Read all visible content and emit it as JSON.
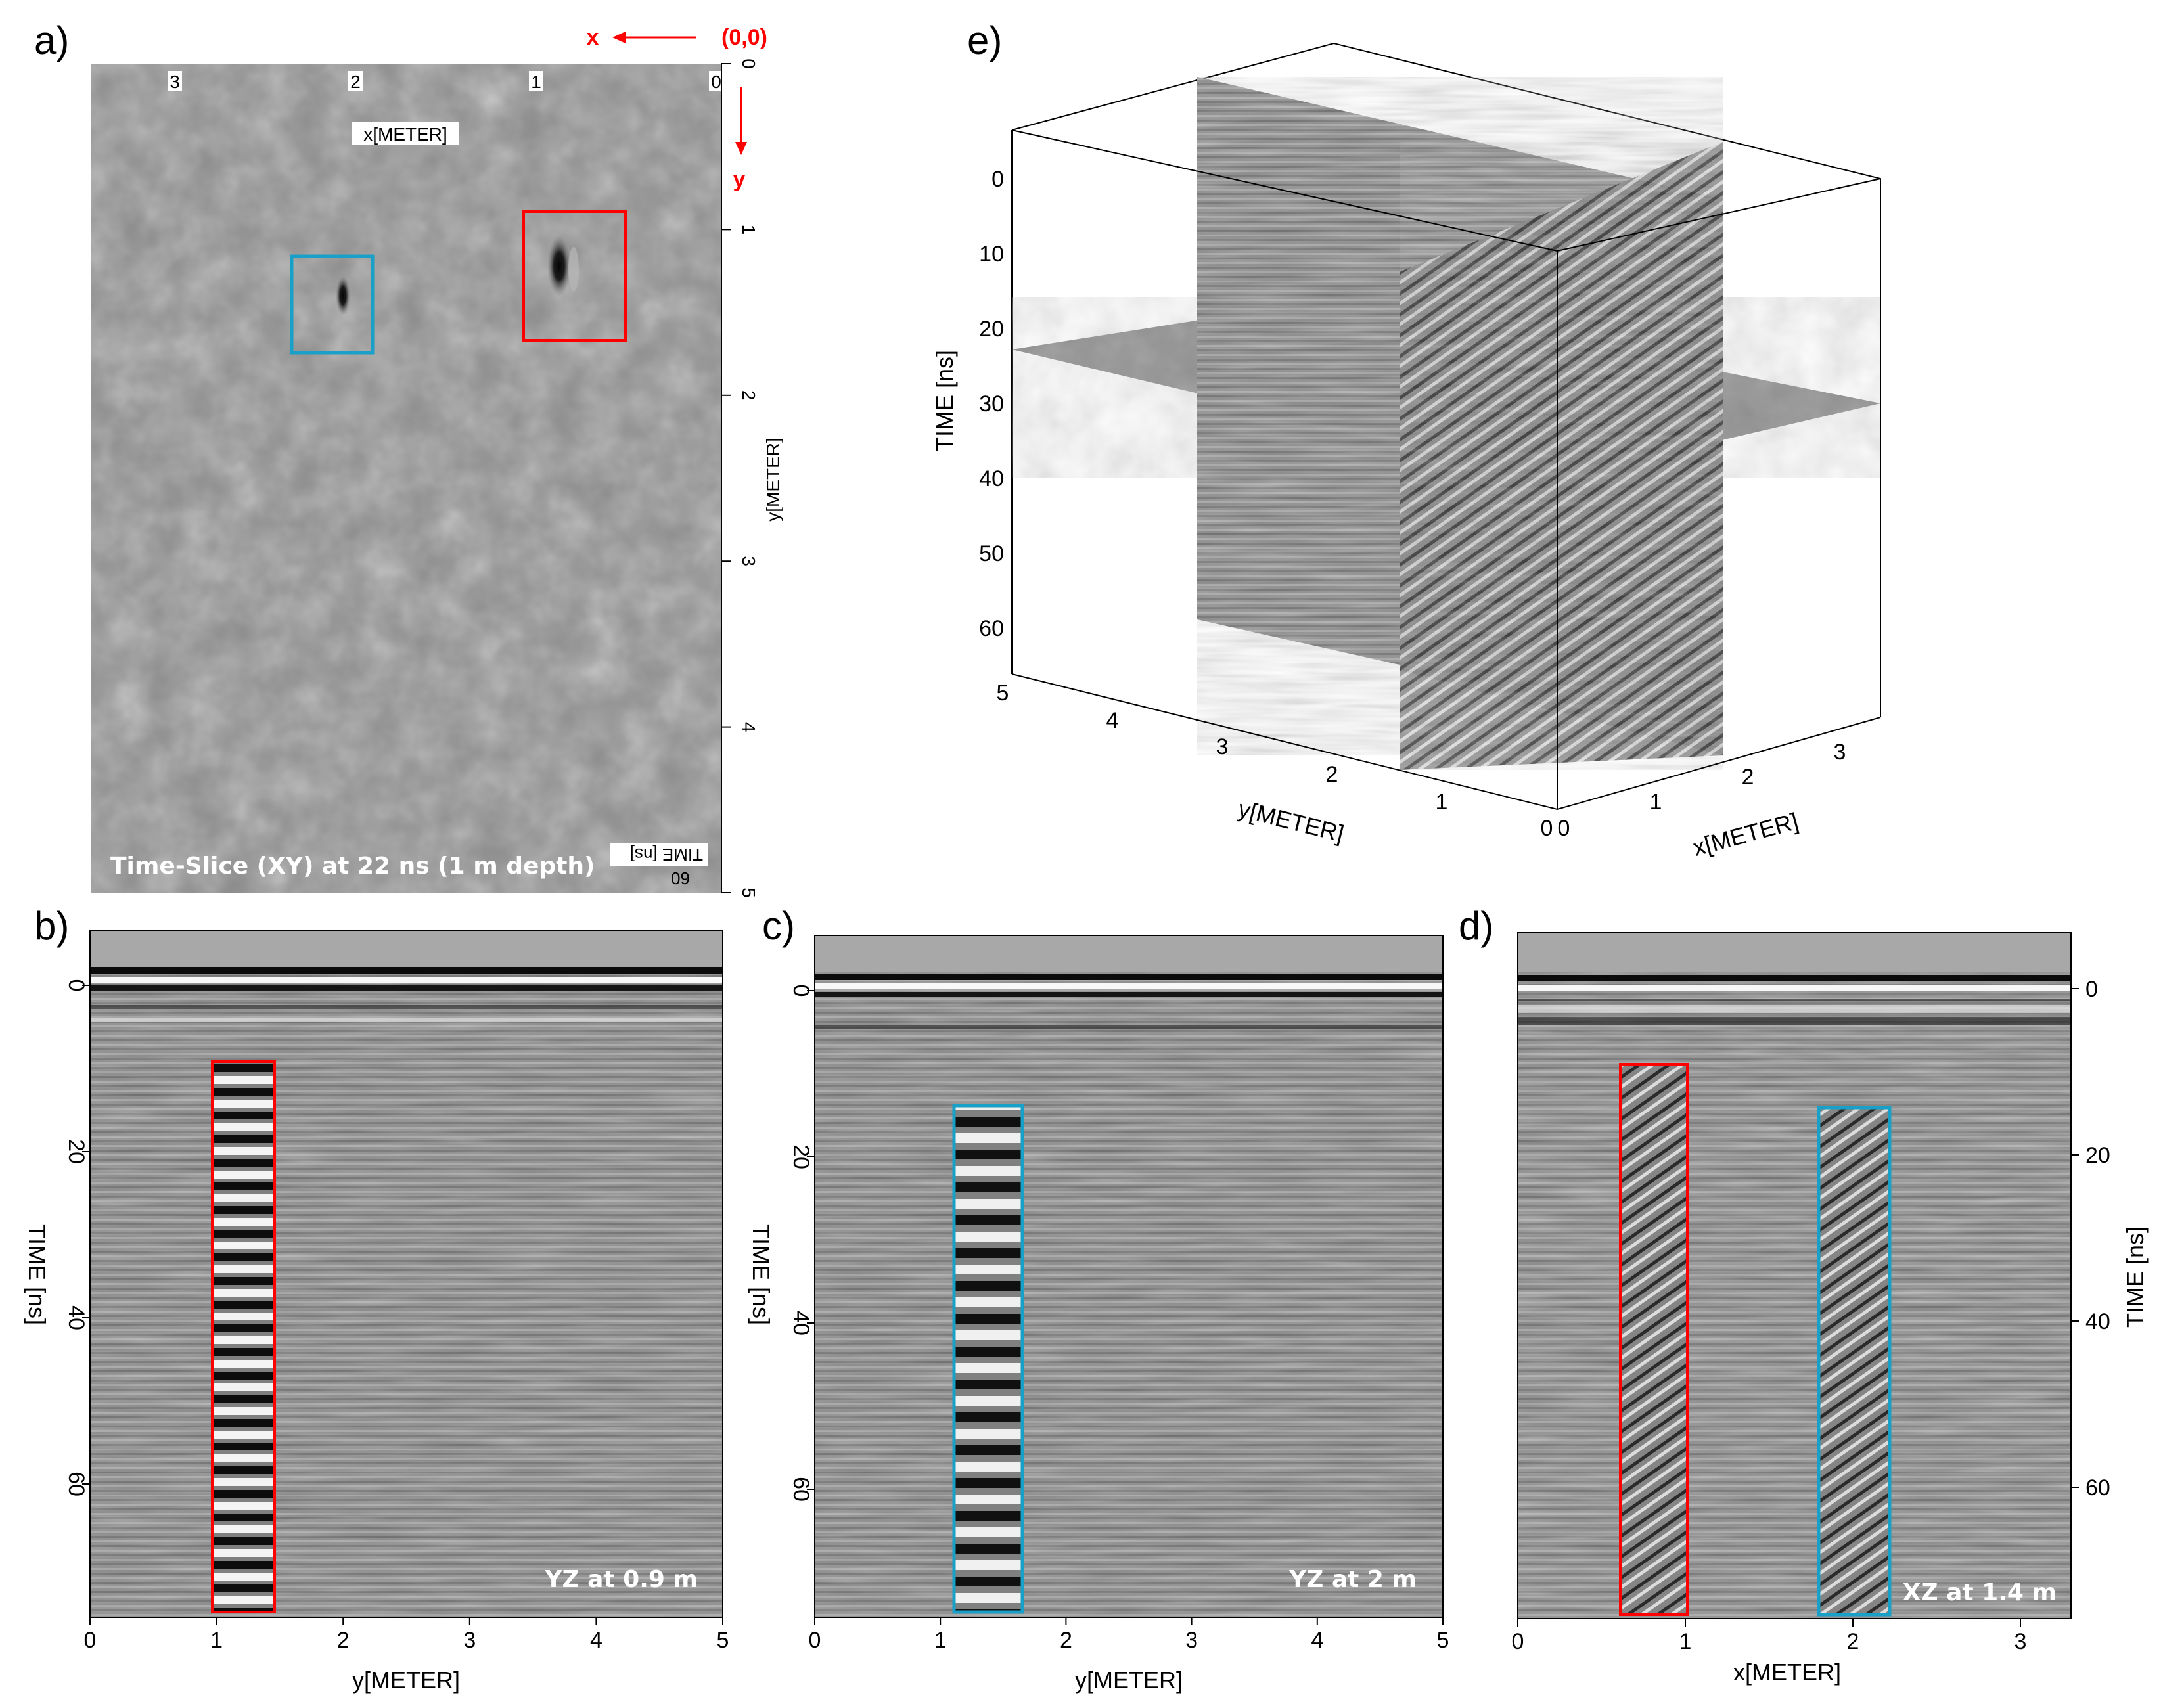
{
  "figure": {
    "panel_labels": {
      "a": "a)",
      "b": "b)",
      "c": "c)",
      "d": "d)",
      "e": "e)"
    },
    "colors": {
      "red_box": "#ff0000",
      "blue_box": "#19a0c8",
      "arrow": "#ff0000"
    }
  },
  "panel_a": {
    "title": "Time-Slice (XY) at 22 ns (1 m depth)",
    "x_label": "x[METER]",
    "y_label": "y[METER]",
    "time_label": "TIME [ns]",
    "time_value": "60",
    "x_ticks": [
      "3",
      "2",
      "1",
      "0"
    ],
    "y_ticks": [
      "0",
      "1",
      "2",
      "3",
      "4",
      "5"
    ],
    "x_axis_letter": "x",
    "y_axis_letter": "y",
    "origin_label": "(0,0)"
  },
  "panel_b": {
    "caption": "YZ at 0.9 m",
    "x_label": "y[METER]",
    "y_label": "TIME [ns]",
    "x_ticks": [
      "0",
      "1",
      "2",
      "3",
      "4",
      "5"
    ],
    "y_ticks": [
      "0",
      "20",
      "40",
      "60"
    ]
  },
  "panel_c": {
    "caption": "YZ at 2 m",
    "x_label": "y[METER]",
    "y_label": "TIME [ns]",
    "x_ticks": [
      "0",
      "1",
      "2",
      "3",
      "4",
      "5"
    ],
    "y_ticks": [
      "0",
      "20",
      "40",
      "60"
    ]
  },
  "panel_d": {
    "caption": "XZ at 1.4 m",
    "x_label": "x[METER]",
    "y_label": "TIME [ns]",
    "x_ticks": [
      "0",
      "1",
      "2",
      "3"
    ],
    "y_ticks": [
      "0",
      "20",
      "40",
      "60"
    ]
  },
  "panel_e": {
    "time_label": "TIME [ns]",
    "y_label": "y[METER]",
    "x_label": "x[METER]",
    "time_ticks": [
      "0",
      "10",
      "20",
      "30",
      "40",
      "50",
      "60"
    ],
    "y_ticks": [
      "5",
      "4",
      "3",
      "2",
      "1",
      "0"
    ],
    "x_ticks": [
      "0",
      "1",
      "2",
      "3"
    ]
  }
}
